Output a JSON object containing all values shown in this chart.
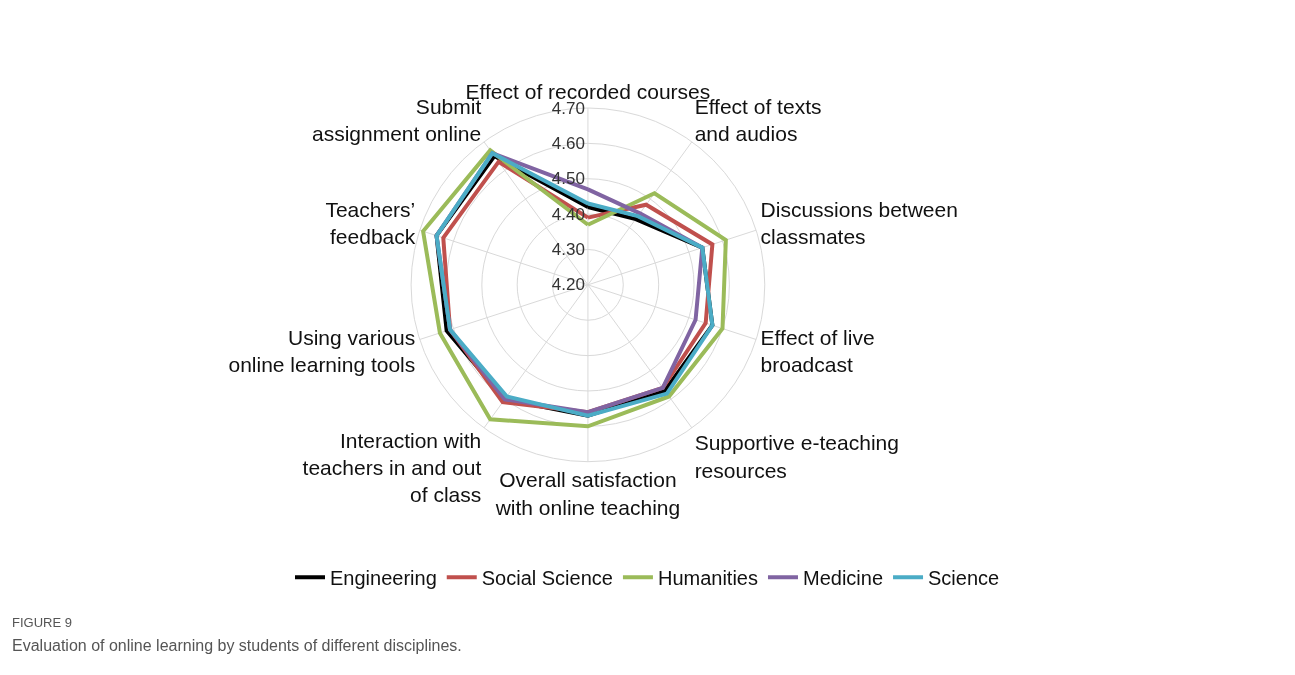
{
  "chart_data": {
    "type": "radar",
    "categories": [
      "Effect of recorded courses",
      "Effect of texts\nand audios",
      "Discussions between\nclassmates",
      "Effect of live\nbroadcast",
      "Supportive e-teaching\nresources",
      "Overall satisfaction\nwith online teaching",
      "Interaction with\nteachers in and out\nof class",
      "Using various\nonline learning tools",
      "Teachers’\nfeedback",
      "Submit\nassignment online"
    ],
    "series": [
      {
        "name": "Engineering",
        "color": "#000000",
        "values": [
          4.42,
          4.43,
          4.54,
          4.57,
          4.57,
          4.57,
          4.6,
          4.62,
          4.65,
          4.65
        ]
      },
      {
        "name": "Social Science",
        "color": "#c0504d",
        "values": [
          4.39,
          4.48,
          4.57,
          4.55,
          4.56,
          4.56,
          4.61,
          4.61,
          4.63,
          4.63
        ]
      },
      {
        "name": "Humanities",
        "color": "#9bbb59",
        "values": [
          4.37,
          4.52,
          4.61,
          4.6,
          4.59,
          4.6,
          4.67,
          4.64,
          4.69,
          4.67
        ]
      },
      {
        "name": "Medicine",
        "color": "#8064a2",
        "values": [
          4.47,
          4.45,
          4.54,
          4.52,
          4.56,
          4.56,
          4.6,
          4.61,
          4.65,
          4.66
        ]
      },
      {
        "name": "Science",
        "color": "#4bacc6",
        "values": [
          4.43,
          4.44,
          4.54,
          4.57,
          4.58,
          4.57,
          4.59,
          4.61,
          4.65,
          4.66
        ]
      }
    ],
    "ylim": [
      4.2,
      4.7
    ],
    "yticks": [
      {
        "value": 4.2,
        "label": "4.20"
      },
      {
        "value": 4.3,
        "label": "4.30"
      },
      {
        "value": 4.4,
        "label": "4.40"
      },
      {
        "value": 4.5,
        "label": "4.50"
      },
      {
        "value": 4.6,
        "label": "4.60"
      },
      {
        "value": 4.7,
        "label": "4.70"
      }
    ],
    "grid": true,
    "legend": "bottom",
    "marker": "none",
    "line_style": "solid",
    "annotations": [
      "FIGURE 9",
      "Evaluation of online learning by students of different disciplines."
    ]
  }
}
